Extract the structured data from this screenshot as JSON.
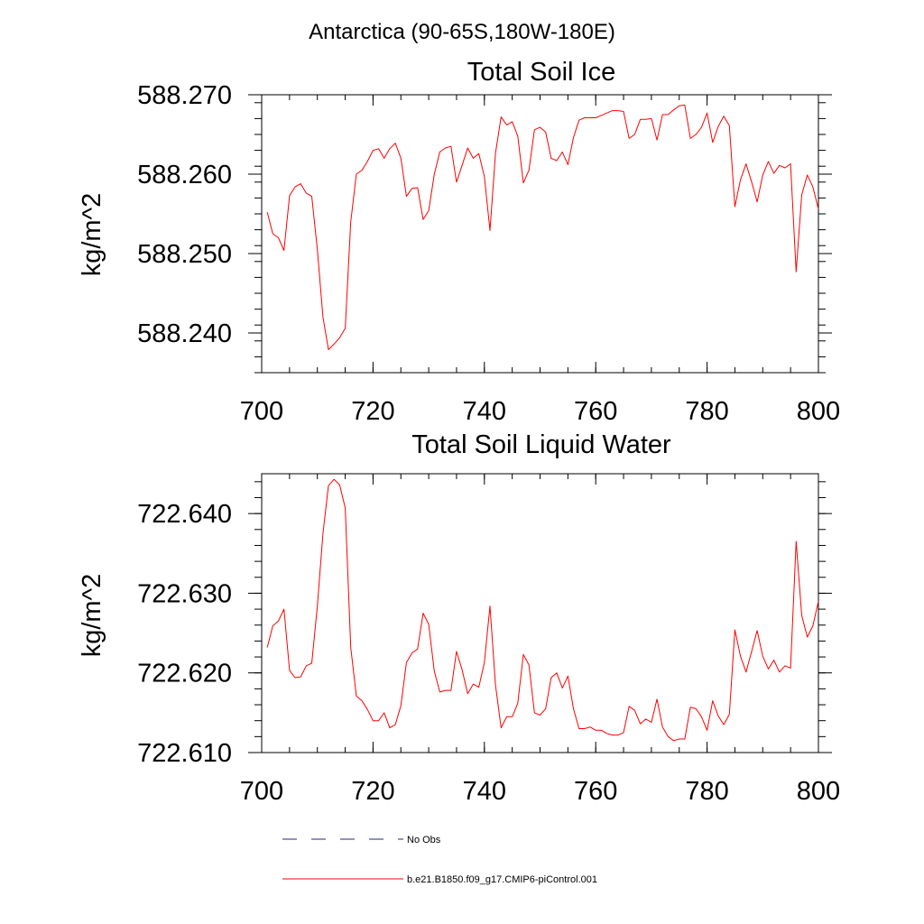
{
  "figure": {
    "title": "Antarctica (90-65S,180W-180E)"
  },
  "legend": {
    "entries": [
      {
        "label": "No Obs",
        "style": "dashed",
        "color": "#2a2a6a"
      },
      {
        "label": "b.e21.B1850.f09_g17.CMIP6-piControl.001",
        "style": "solid",
        "color": "#ff0000"
      }
    ]
  },
  "chart_data": [
    {
      "type": "line",
      "title": "Total Soil Ice",
      "xlabel": "",
      "ylabel": "kg/m^2",
      "xlim": [
        700,
        800
      ],
      "ylim": [
        588.235,
        588.27
      ],
      "xticks": [
        700,
        720,
        740,
        760,
        780,
        800
      ],
      "xtick_labels": [
        "700",
        "720",
        "740",
        "760",
        "780",
        "800"
      ],
      "yticks": [
        588.24,
        588.25,
        588.26,
        588.27
      ],
      "ytick_labels": [
        "588.240",
        "588.250",
        "588.260",
        "588.270"
      ],
      "series": [
        {
          "name": "b.e21.B1850.f09_g17.CMIP6-piControl.001",
          "color": "#ff0000",
          "x": [
            701,
            702,
            703,
            704,
            705,
            706,
            707,
            708,
            709,
            710,
            711,
            712,
            713,
            714,
            715,
            716,
            717,
            718,
            719,
            720,
            721,
            722,
            723,
            724,
            725,
            726,
            727,
            728,
            729,
            730,
            731,
            732,
            733,
            734,
            735,
            736,
            737,
            738,
            739,
            740,
            741,
            742,
            743,
            744,
            745,
            746,
            747,
            748,
            749,
            750,
            751,
            752,
            753,
            754,
            755,
            756,
            757,
            758,
            759,
            760,
            761,
            762,
            763,
            764,
            765,
            766,
            767,
            768,
            769,
            770,
            771,
            772,
            773,
            774,
            775,
            776,
            777,
            778,
            779,
            780,
            781,
            782,
            783,
            784,
            785,
            786,
            787,
            788,
            789,
            790,
            791,
            792,
            793,
            794,
            795,
            796,
            797,
            798,
            799,
            800
          ],
          "y": [
            588.2552,
            588.2525,
            588.252,
            588.2504,
            588.2573,
            588.2584,
            588.2588,
            588.2576,
            588.2572,
            588.2505,
            588.242,
            588.2379,
            588.2386,
            588.2394,
            588.2406,
            588.254,
            588.26,
            588.2605,
            588.2616,
            588.263,
            588.2632,
            588.262,
            588.2632,
            588.2639,
            588.262,
            588.2572,
            588.2582,
            588.2583,
            588.2543,
            588.2554,
            588.26,
            588.2628,
            588.2633,
            588.2635,
            588.259,
            588.2611,
            588.2633,
            588.262,
            588.2626,
            588.2597,
            588.2529,
            588.2626,
            588.2672,
            588.2662,
            588.2666,
            588.2648,
            588.2589,
            588.2605,
            588.2656,
            588.2659,
            588.2653,
            588.262,
            588.2617,
            588.2628,
            588.2612,
            588.2646,
            588.2668,
            588.2671,
            588.2671,
            588.2671,
            588.2674,
            588.2677,
            588.268,
            588.268,
            588.2679,
            588.2645,
            588.265,
            588.2669,
            588.2669,
            588.267,
            588.2643,
            588.2675,
            588.2675,
            588.2681,
            588.2686,
            588.2687,
            588.2645,
            588.265,
            588.2659,
            588.2677,
            588.264,
            588.266,
            588.2673,
            588.2661,
            588.2559,
            588.2593,
            588.2613,
            588.259,
            588.2565,
            588.2599,
            588.2616,
            588.2601,
            588.2611,
            588.2608,
            588.2613,
            588.2477,
            588.2574,
            588.2599,
            588.2584,
            588.2556
          ]
        }
      ]
    },
    {
      "type": "line",
      "title": "Total Soil Liquid Water",
      "xlabel": "",
      "ylabel": "kg/m^2",
      "xlim": [
        700,
        800
      ],
      "ylim": [
        722.61,
        722.645
      ],
      "xticks": [
        700,
        720,
        740,
        760,
        780,
        800
      ],
      "xtick_labels": [
        "700",
        "720",
        "740",
        "760",
        "780",
        "800"
      ],
      "yticks": [
        722.61,
        722.62,
        722.63,
        722.64
      ],
      "ytick_labels": [
        "722.610",
        "722.620",
        "722.630",
        "722.640"
      ],
      "series": [
        {
          "name": "b.e21.B1850.f09_g17.CMIP6-piControl.001",
          "color": "#ff0000",
          "x": [
            701,
            702,
            703,
            704,
            705,
            706,
            707,
            708,
            709,
            710,
            711,
            712,
            713,
            714,
            715,
            716,
            717,
            718,
            719,
            720,
            721,
            722,
            723,
            724,
            725,
            726,
            727,
            728,
            729,
            730,
            731,
            732,
            733,
            734,
            735,
            736,
            737,
            738,
            739,
            740,
            741,
            742,
            743,
            744,
            745,
            746,
            747,
            748,
            749,
            750,
            751,
            752,
            753,
            754,
            755,
            756,
            757,
            758,
            759,
            760,
            761,
            762,
            763,
            764,
            765,
            766,
            767,
            768,
            769,
            770,
            771,
            772,
            773,
            774,
            775,
            776,
            777,
            778,
            779,
            780,
            781,
            782,
            783,
            784,
            785,
            786,
            787,
            788,
            789,
            790,
            791,
            792,
            793,
            794,
            795,
            796,
            797,
            798,
            799,
            800
          ],
          "y": [
            722.6232,
            722.6259,
            722.6265,
            722.628,
            722.6203,
            722.6194,
            722.6195,
            722.6209,
            722.6212,
            722.6284,
            722.6375,
            722.6435,
            722.6443,
            722.6436,
            722.6407,
            722.6232,
            722.6171,
            722.6165,
            722.6154,
            722.614,
            722.614,
            722.615,
            722.6131,
            722.6135,
            722.6159,
            722.6213,
            722.6225,
            722.623,
            722.6275,
            722.6261,
            722.6202,
            722.6176,
            722.6178,
            722.6178,
            722.6227,
            722.6204,
            722.6174,
            722.6186,
            722.6182,
            722.6213,
            722.6284,
            722.6185,
            722.6131,
            722.6145,
            722.6145,
            722.6162,
            722.6223,
            722.621,
            722.615,
            722.6147,
            722.6155,
            722.6194,
            722.62,
            722.6181,
            722.6196,
            722.6155,
            722.613,
            722.613,
            722.6132,
            722.6128,
            722.6128,
            722.6124,
            722.6122,
            722.6122,
            722.6125,
            722.6158,
            722.6153,
            722.6136,
            722.6142,
            722.6138,
            722.6167,
            722.6132,
            722.612,
            722.6115,
            722.6117,
            722.6117,
            722.6157,
            722.6155,
            722.6145,
            722.6128,
            722.6165,
            722.6146,
            722.6135,
            722.6148,
            722.6254,
            722.6221,
            722.6201,
            722.6227,
            722.6253,
            722.6221,
            722.6205,
            722.6216,
            722.6201,
            722.6209,
            722.6206,
            722.6365,
            722.6272,
            722.6245,
            722.6259,
            722.629
          ]
        }
      ]
    }
  ]
}
